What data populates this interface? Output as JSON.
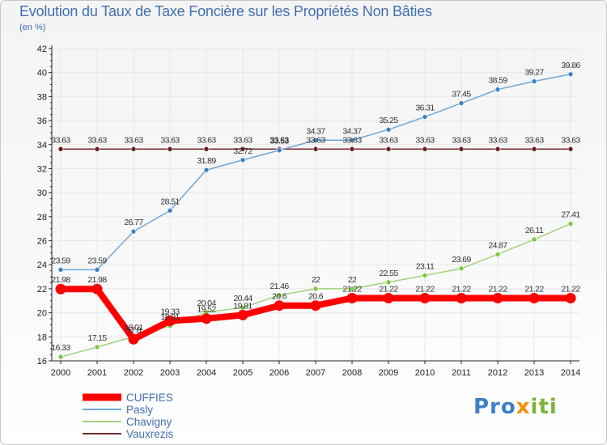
{
  "header": {
    "title": "Evolution du Taux de Taxe Foncière sur les Propriétés Non Bâties",
    "unit": "(en %)"
  },
  "logo": {
    "parts": [
      "Pro",
      "x",
      "iti"
    ]
  },
  "colors": {
    "axis": "#222222",
    "grid": "#e7e7e7",
    "title": "#3f6fb0",
    "logo_pro": "#3d7fc8",
    "logo_x": "#f29200",
    "logo_iti": "#7ab23c"
  },
  "chart_data": {
    "type": "line",
    "title": "Evolution du Taux de Taxe Foncière sur les Propriétés Non Bâties",
    "ylabel": "(en %)",
    "xlabel": "",
    "x": [
      "2000",
      "2001",
      "2002",
      "2003",
      "2004",
      "2005",
      "2006",
      "2007",
      "2008",
      "2009",
      "2010",
      "2011",
      "2012",
      "2013",
      "2014"
    ],
    "ylim": [
      16,
      42
    ],
    "yticks": [
      16,
      18,
      20,
      22,
      24,
      26,
      28,
      30,
      32,
      34,
      36,
      38,
      40,
      42
    ],
    "legend_position": "bottom-left",
    "series": [
      {
        "name": "CUFFIES",
        "color": "#ff0000",
        "width": 8,
        "marker_r": 6.5,
        "values": [
          21.98,
          21.98,
          17.8,
          19.33,
          19.52,
          19.81,
          20.6,
          20.6,
          21.22,
          21.22,
          21.22,
          21.22,
          21.22,
          21.22,
          21.22
        ],
        "labels": [
          "21.98",
          "21.98",
          "17.8",
          "19.33",
          "19.52",
          "19.81",
          "20.6",
          "20.6",
          "21.22",
          "21.22",
          "21.22",
          "21.22",
          "21.22",
          "21.22",
          "21.22"
        ]
      },
      {
        "name": "Pasly",
        "color": "#6ea7d8",
        "width": 1.5,
        "marker_r": 3,
        "marker_color": "#3b82c4",
        "values": [
          23.59,
          23.59,
          26.77,
          28.51,
          31.89,
          32.72,
          33.53,
          34.37,
          34.37,
          35.25,
          36.31,
          37.45,
          38.59,
          39.27,
          39.86
        ],
        "labels": [
          "23.59",
          "23.59",
          "26.77",
          "28.51",
          "31.89",
          "32.72",
          "33.53",
          "34.37",
          "34.37",
          "35.25",
          "36.31",
          "37.45",
          "38.59",
          "39.27",
          "39.86"
        ]
      },
      {
        "name": "Chavigny",
        "color": "#9fd37c",
        "width": 1.5,
        "marker_r": 3,
        "marker_color": "#7ac943",
        "values": [
          16.33,
          17.15,
          18.01,
          18.91,
          20.04,
          20.44,
          21.46,
          22,
          22,
          22.55,
          23.11,
          23.69,
          24.87,
          26.11,
          27.41
        ],
        "labels": [
          "16.33",
          "17.15",
          "18.01",
          "18.91",
          "20.04",
          "20.44",
          "21.46",
          "22",
          "22",
          "22.55",
          "23.11",
          "23.69",
          "24.87",
          "26.11",
          "27.41"
        ]
      },
      {
        "name": "Vauxrezis",
        "color": "#7a2a2a",
        "width": 1.5,
        "marker_r": 3,
        "marker_color": "#6b1c1c",
        "values": [
          33.63,
          33.63,
          33.63,
          33.63,
          33.63,
          33.63,
          33.63,
          33.63,
          33.63,
          33.63,
          33.63,
          33.63,
          33.63,
          33.63,
          33.63
        ],
        "labels": [
          "33.63",
          "33.63",
          "33.63",
          "33.63",
          "33.63",
          "33.63",
          "33.63",
          "33.63",
          "33.63",
          "33.63",
          "33.63",
          "33.63",
          "33.63",
          "33.63",
          "33.63"
        ]
      }
    ]
  }
}
